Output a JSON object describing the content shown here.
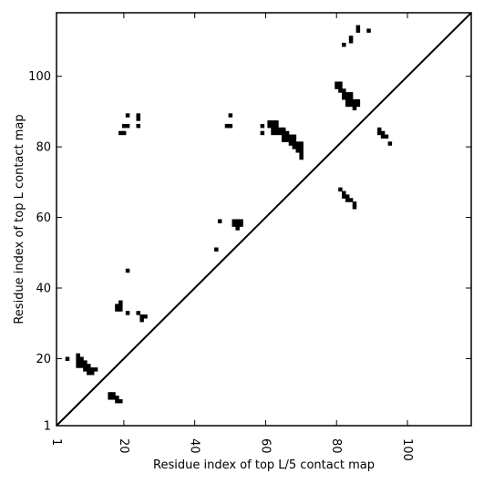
{
  "chart_data": {
    "type": "scatter",
    "title": "",
    "xlabel": "Residue index of top L/5 contact map",
    "ylabel": "Residue index of top L contact map",
    "xlim": [
      1,
      118
    ],
    "ylim": [
      1,
      118
    ],
    "xticks": [
      {
        "value": 1,
        "label": "1"
      },
      {
        "value": 20,
        "label": "20"
      },
      {
        "value": 40,
        "label": "40"
      },
      {
        "value": 60,
        "label": "60"
      },
      {
        "value": 80,
        "label": "80"
      },
      {
        "value": 100,
        "label": "100"
      }
    ],
    "yticks": [
      {
        "value": 1,
        "label": "1"
      },
      {
        "value": 20,
        "label": "20"
      },
      {
        "value": 40,
        "label": "40"
      },
      {
        "value": 60,
        "label": "60"
      },
      {
        "value": 80,
        "label": "80"
      },
      {
        "value": 100,
        "label": "100"
      }
    ],
    "diagonal": true,
    "grid": false,
    "mark_color": "#000000",
    "points": [
      [
        4,
        20
      ],
      [
        7,
        18
      ],
      [
        7,
        19
      ],
      [
        7,
        20
      ],
      [
        7,
        21
      ],
      [
        8,
        18
      ],
      [
        8,
        19
      ],
      [
        8,
        20
      ],
      [
        9,
        18
      ],
      [
        9,
        19
      ],
      [
        9,
        17
      ],
      [
        10,
        16
      ],
      [
        10,
        17
      ],
      [
        10,
        18
      ],
      [
        11,
        16
      ],
      [
        11,
        17
      ],
      [
        12,
        17
      ],
      [
        16,
        9
      ],
      [
        16,
        10
      ],
      [
        17,
        9
      ],
      [
        17,
        10
      ],
      [
        18,
        9
      ],
      [
        18,
        8
      ],
      [
        19,
        8
      ],
      [
        18,
        34
      ],
      [
        18,
        35
      ],
      [
        19,
        34
      ],
      [
        19,
        35
      ],
      [
        19,
        36
      ],
      [
        21,
        45
      ],
      [
        21,
        33
      ],
      [
        24,
        33
      ],
      [
        25,
        31
      ],
      [
        25,
        32
      ],
      [
        26,
        32
      ],
      [
        19,
        84
      ],
      [
        20,
        84
      ],
      [
        20,
        86
      ],
      [
        21,
        86
      ],
      [
        21,
        89
      ],
      [
        24,
        86
      ],
      [
        24,
        88
      ],
      [
        24,
        89
      ],
      [
        46,
        51
      ],
      [
        47,
        59
      ],
      [
        49,
        86
      ],
      [
        50,
        86
      ],
      [
        50,
        89
      ],
      [
        51,
        58
      ],
      [
        51,
        59
      ],
      [
        52,
        58
      ],
      [
        52,
        59
      ],
      [
        52,
        57
      ],
      [
        53,
        58
      ],
      [
        53,
        59
      ],
      [
        59,
        84
      ],
      [
        59,
        86
      ],
      [
        61,
        86
      ],
      [
        61,
        87
      ],
      [
        62,
        84
      ],
      [
        62,
        85
      ],
      [
        62,
        86
      ],
      [
        62,
        87
      ],
      [
        63,
        84
      ],
      [
        63,
        85
      ],
      [
        63,
        86
      ],
      [
        63,
        87
      ],
      [
        64,
        84
      ],
      [
        64,
        85
      ],
      [
        65,
        84
      ],
      [
        65,
        85
      ],
      [
        65,
        83
      ],
      [
        65,
        82
      ],
      [
        66,
        82
      ],
      [
        66,
        83
      ],
      [
        66,
        84
      ],
      [
        67,
        82
      ],
      [
        67,
        81
      ],
      [
        67,
        83
      ],
      [
        68,
        80
      ],
      [
        68,
        81
      ],
      [
        68,
        82
      ],
      [
        68,
        83
      ],
      [
        69,
        80
      ],
      [
        69,
        81
      ],
      [
        69,
        79
      ],
      [
        70,
        80
      ],
      [
        70,
        81
      ],
      [
        70,
        77
      ],
      [
        70,
        78
      ],
      [
        70,
        79
      ],
      [
        80,
        97
      ],
      [
        80,
        98
      ],
      [
        81,
        96
      ],
      [
        81,
        97
      ],
      [
        81,
        98
      ],
      [
        82,
        95
      ],
      [
        82,
        96
      ],
      [
        82,
        94
      ],
      [
        83,
        94
      ],
      [
        83,
        95
      ],
      [
        83,
        93
      ],
      [
        83,
        92
      ],
      [
        84,
        92
      ],
      [
        84,
        93
      ],
      [
        84,
        94
      ],
      [
        84,
        95
      ],
      [
        85,
        92
      ],
      [
        85,
        93
      ],
      [
        85,
        91
      ],
      [
        86,
        92
      ],
      [
        86,
        93
      ],
      [
        81,
        68
      ],
      [
        82,
        67
      ],
      [
        82,
        66
      ],
      [
        83,
        66
      ],
      [
        83,
        65
      ],
      [
        84,
        65
      ],
      [
        85,
        64
      ],
      [
        85,
        63
      ],
      [
        82,
        109
      ],
      [
        84,
        110
      ],
      [
        84,
        111
      ],
      [
        86,
        113
      ],
      [
        86,
        114
      ],
      [
        89,
        113
      ],
      [
        92,
        84
      ],
      [
        92,
        85
      ],
      [
        93,
        83
      ],
      [
        93,
        84
      ],
      [
        94,
        83
      ],
      [
        95,
        81
      ]
    ]
  }
}
